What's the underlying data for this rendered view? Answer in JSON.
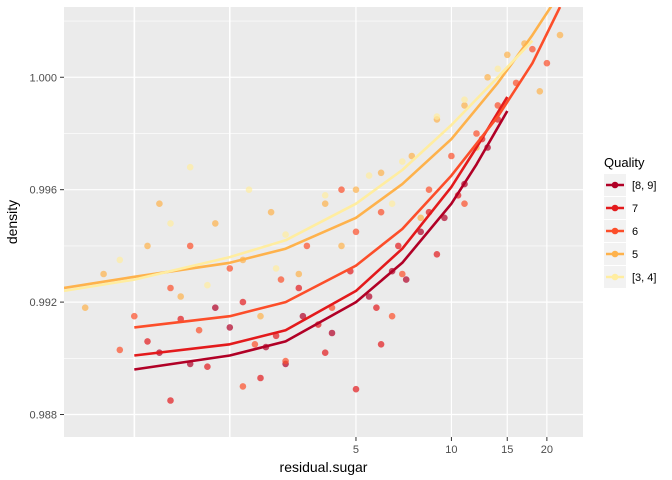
{
  "chart_data": {
    "type": "scatter",
    "title": "",
    "xlabel": "residual.sugar",
    "ylabel": "density",
    "x_scale": "log10",
    "xlim": [
      0.6,
      26
    ],
    "ylim": [
      0.9872,
      1.0025
    ],
    "x_ticks": [
      5,
      10,
      15,
      20
    ],
    "x_tick_labels": [
      "5",
      "10",
      "15",
      "20"
    ],
    "x_minor_gridlines": [
      1,
      2
    ],
    "y_ticks": [
      0.988,
      0.992,
      0.996,
      1.0
    ],
    "y_tick_labels": [
      "0.988",
      "0.992",
      "0.996",
      "1.000"
    ],
    "grid": true,
    "legend": {
      "title": "Quality",
      "position": "right",
      "entries": [
        "[8, 9]",
        "7",
        "6",
        "5",
        "[3, 4]"
      ]
    },
    "series": [
      {
        "name": "[8, 9]",
        "color": "#b10026",
        "trend": {
          "x": [
            1.0,
            2,
            3,
            5,
            7,
            10,
            12,
            15
          ],
          "y": [
            0.9896,
            0.9901,
            0.9906,
            0.992,
            0.9934,
            0.9955,
            0.9969,
            0.9988
          ]
        },
        "points": [
          [
            1.2,
            0.9902
          ],
          [
            1.5,
            0.9898
          ],
          [
            2.0,
            0.9911
          ],
          [
            2.6,
            0.9904
          ],
          [
            3.4,
            0.9915
          ],
          [
            4.2,
            0.9909
          ],
          [
            5.5,
            0.9922
          ],
          [
            6.5,
            0.9931
          ],
          [
            8.0,
            0.9945
          ],
          [
            9.5,
            0.995
          ],
          [
            11.0,
            0.9962
          ],
          [
            13.0,
            0.9975
          ],
          [
            1.8,
            0.9918
          ],
          [
            3.0,
            0.9898
          ],
          [
            7.2,
            0.9928
          ]
        ]
      },
      {
        "name": "7",
        "color": "#e31a1c",
        "trend": {
          "x": [
            1.0,
            2,
            3,
            5,
            7,
            10,
            12,
            15
          ],
          "y": [
            0.9901,
            0.9905,
            0.991,
            0.9924,
            0.9939,
            0.9961,
            0.9975,
            0.9993
          ]
        },
        "points": [
          [
            1.1,
            0.9906
          ],
          [
            1.4,
            0.9914
          ],
          [
            1.7,
            0.9897
          ],
          [
            2.2,
            0.992
          ],
          [
            2.8,
            0.9908
          ],
          [
            3.3,
            0.9925
          ],
          [
            4.0,
            0.9902
          ],
          [
            4.8,
            0.9931
          ],
          [
            5.8,
            0.9918
          ],
          [
            6.8,
            0.994
          ],
          [
            8.5,
            0.9952
          ],
          [
            10.5,
            0.9958
          ],
          [
            12.5,
            0.9978
          ],
          [
            14.0,
            0.9985
          ],
          [
            2.5,
            0.9893
          ],
          [
            3.8,
            0.9912
          ],
          [
            6.0,
            0.9905
          ],
          [
            9.0,
            0.9937
          ],
          [
            1.3,
            0.9885
          ],
          [
            5.0,
            0.9889
          ]
        ]
      },
      {
        "name": "6",
        "color": "#fc4e2a",
        "trend": {
          "x": [
            1.0,
            2,
            3,
            5,
            7,
            10,
            14,
            18,
            22
          ],
          "y": [
            0.9911,
            0.9915,
            0.992,
            0.9933,
            0.9946,
            0.9965,
            0.9986,
            1.0005,
            1.0025
          ]
        },
        "points": [
          [
            1.0,
            0.9915
          ],
          [
            1.3,
            0.9925
          ],
          [
            1.6,
            0.991
          ],
          [
            2.0,
            0.9932
          ],
          [
            2.4,
            0.9905
          ],
          [
            2.9,
            0.9928
          ],
          [
            3.5,
            0.994
          ],
          [
            4.2,
            0.9918
          ],
          [
            5.0,
            0.9945
          ],
          [
            6.0,
            0.9952
          ],
          [
            7.0,
            0.993
          ],
          [
            8.5,
            0.996
          ],
          [
            10.0,
            0.9972
          ],
          [
            12.0,
            0.998
          ],
          [
            14.0,
            0.999
          ],
          [
            16.0,
            0.9998
          ],
          [
            18.0,
            1.001
          ],
          [
            20.0,
            1.0005
          ],
          [
            1.5,
            0.994
          ],
          [
            3.0,
            0.9899
          ],
          [
            6.5,
            0.9915
          ],
          [
            11.0,
            0.9955
          ],
          [
            0.9,
            0.9903
          ],
          [
            2.2,
            0.989
          ],
          [
            4.5,
            0.996
          ]
        ]
      },
      {
        "name": "5",
        "color": "#feb24c",
        "trend": {
          "x": [
            0.6,
            1,
            2,
            3,
            5,
            7,
            10,
            14,
            18,
            22
          ],
          "y": [
            0.9925,
            0.9929,
            0.9934,
            0.9939,
            0.995,
            0.9962,
            0.9978,
            0.9998,
            1.0015,
            1.003
          ]
        },
        "points": [
          [
            0.8,
            0.993
          ],
          [
            1.1,
            0.994
          ],
          [
            1.4,
            0.9922
          ],
          [
            1.8,
            0.9948
          ],
          [
            2.2,
            0.9935
          ],
          [
            2.7,
            0.9952
          ],
          [
            3.3,
            0.993
          ],
          [
            4.0,
            0.9955
          ],
          [
            5.0,
            0.996
          ],
          [
            6.0,
            0.9966
          ],
          [
            7.5,
            0.9972
          ],
          [
            9.0,
            0.9985
          ],
          [
            11.0,
            0.999
          ],
          [
            13.0,
            1.0
          ],
          [
            15.0,
            1.0008
          ],
          [
            17.0,
            1.0012
          ],
          [
            19.0,
            0.9995
          ],
          [
            1.2,
            0.9955
          ],
          [
            2.5,
            0.9915
          ],
          [
            4.5,
            0.994
          ],
          [
            8.0,
            0.995
          ],
          [
            12.0,
            0.9975
          ],
          [
            22.0,
            1.0015
          ],
          [
            0.7,
            0.9918
          ]
        ]
      },
      {
        "name": "[3, 4]",
        "color": "#ffeda0",
        "trend": {
          "x": [
            0.6,
            1,
            2,
            3,
            5,
            7,
            10,
            14,
            18
          ],
          "y": [
            0.9924,
            0.9928,
            0.9936,
            0.9942,
            0.9955,
            0.9967,
            0.9983,
            1.0,
            1.0013
          ]
        },
        "points": [
          [
            0.9,
            0.9935
          ],
          [
            1.3,
            0.9948
          ],
          [
            1.7,
            0.9926
          ],
          [
            2.3,
            0.996
          ],
          [
            3.0,
            0.9944
          ],
          [
            4.0,
            0.9958
          ],
          [
            5.5,
            0.9965
          ],
          [
            7.0,
            0.997
          ],
          [
            9.0,
            0.9986
          ],
          [
            11.0,
            0.9992
          ],
          [
            14.0,
            1.0003
          ],
          [
            1.5,
            0.9968
          ],
          [
            2.8,
            0.9932
          ],
          [
            6.5,
            0.9955
          ]
        ]
      }
    ]
  }
}
